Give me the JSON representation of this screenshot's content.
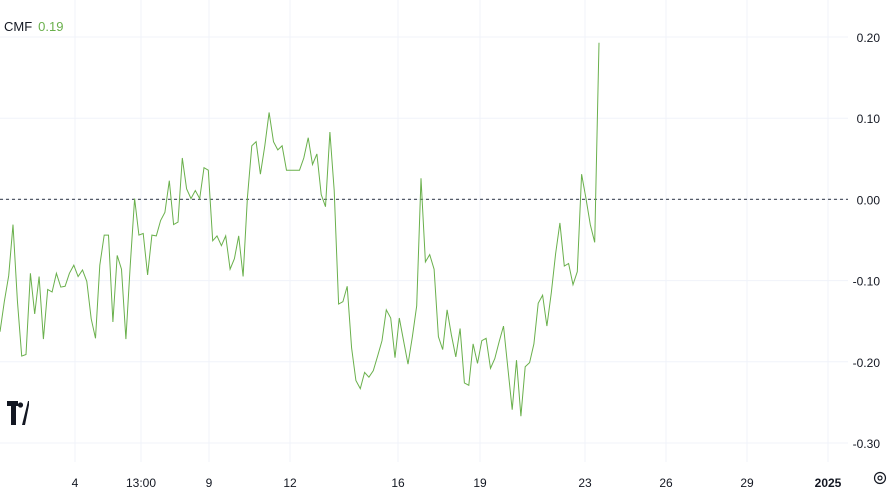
{
  "legend": {
    "name": "CMF",
    "value": "0.19",
    "color": "#6ab04c"
  },
  "logo": "tradingview-logo",
  "settings_icon": "gear-icon",
  "chart_data": {
    "type": "line",
    "series": [
      {
        "name": "CMF",
        "color": "#6ab04c",
        "values": [
          -0.163,
          -0.126,
          -0.094,
          -0.031,
          -0.125,
          -0.193,
          -0.191,
          -0.091,
          -0.141,
          -0.095,
          -0.172,
          -0.111,
          -0.114,
          -0.091,
          -0.108,
          -0.107,
          -0.091,
          -0.081,
          -0.095,
          -0.087,
          -0.101,
          -0.147,
          -0.171,
          -0.081,
          -0.044,
          -0.044,
          -0.151,
          -0.069,
          -0.086,
          -0.172,
          -0.082,
          0.001,
          -0.044,
          -0.042,
          -0.093,
          -0.044,
          -0.045,
          -0.026,
          -0.016,
          0.023,
          -0.031,
          -0.028,
          0.051,
          0.013,
          0.001,
          0.011,
          0.001,
          0.039,
          0.036,
          -0.051,
          -0.045,
          -0.057,
          -0.045,
          -0.086,
          -0.073,
          -0.045,
          -0.095,
          0.002,
          0.066,
          0.071,
          0.031,
          0.066,
          0.107,
          0.071,
          0.061,
          0.066,
          0.036,
          0.036,
          0.036,
          0.036,
          0.051,
          0.076,
          0.043,
          0.056,
          0.006,
          -0.009,
          0.083,
          0.011,
          -0.129,
          -0.126,
          -0.107,
          -0.183,
          -0.223,
          -0.233,
          -0.213,
          -0.219,
          -0.211,
          -0.193,
          -0.174,
          -0.136,
          -0.146,
          -0.195,
          -0.146,
          -0.175,
          -0.203,
          -0.169,
          -0.131,
          0.026,
          -0.077,
          -0.068,
          -0.086,
          -0.169,
          -0.185,
          -0.136,
          -0.167,
          -0.194,
          -0.159,
          -0.226,
          -0.229,
          -0.178,
          -0.202,
          -0.174,
          -0.171,
          -0.208,
          -0.196,
          -0.175,
          -0.156,
          -0.207,
          -0.259,
          -0.198,
          -0.267,
          -0.206,
          -0.201,
          -0.178,
          -0.128,
          -0.118,
          -0.156,
          -0.115,
          -0.067,
          -0.029,
          -0.082,
          -0.079,
          -0.105,
          -0.089,
          0.031,
          0.001,
          -0.031,
          -0.053,
          0.193
        ]
      }
    ],
    "x_tick_labels": [
      "4",
      "13:00",
      "9",
      "12",
      "16",
      "19",
      "23",
      "26",
      "29",
      "2025"
    ],
    "x_tick_bold": [
      false,
      false,
      false,
      false,
      false,
      false,
      false,
      false,
      false,
      true
    ],
    "y_tick_labels": [
      "0.20",
      "0.10",
      "0.00",
      "-0.10",
      "-0.20",
      "-0.30"
    ],
    "y_ticks": [
      0.2,
      0.1,
      0.0,
      -0.1,
      -0.2,
      -0.3
    ],
    "ylim": [
      -0.32,
      0.24
    ],
    "baseline": 0.0,
    "grid": true
  }
}
